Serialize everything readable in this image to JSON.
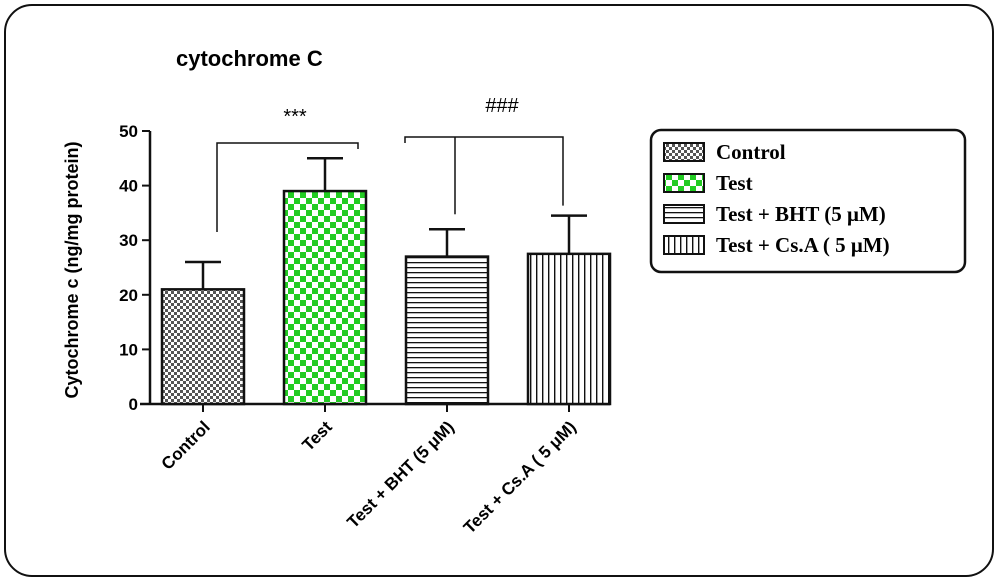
{
  "chart_data": {
    "type": "bar",
    "title": "cytochrome C",
    "xlabel": "",
    "ylabel": "Cytochrome c (ng/mg protein)",
    "ylim": [
      0,
      50
    ],
    "yticks": [
      0,
      10,
      20,
      30,
      40,
      50
    ],
    "categories": [
      "Control",
      "Test",
      "Test + BHT (5 μM)",
      "Test + Cs.A ( 5 μM)"
    ],
    "values": [
      21,
      39,
      27,
      27.5
    ],
    "errors": [
      5,
      6,
      5,
      7
    ],
    "colors": {
      "Control": "#555555",
      "Test": "#22cc22",
      "bar_outline": "#111111"
    },
    "patterns": [
      "checker-gray",
      "checker-green",
      "horizontal-lines",
      "vertical-lines"
    ],
    "significance": [
      {
        "label": "***",
        "groups": [
          "Control",
          "Test"
        ]
      },
      {
        "label": "###",
        "groups": [
          "Test",
          "Test + BHT (5 μM)",
          "Test + Cs.A ( 5 μM)"
        ]
      }
    ],
    "legend": {
      "placement": "right",
      "entries": [
        "Control",
        "Test",
        "Test + BHT (5 μM)",
        "Test + Cs.A ( 5 μM)"
      ]
    },
    "grid": false
  }
}
